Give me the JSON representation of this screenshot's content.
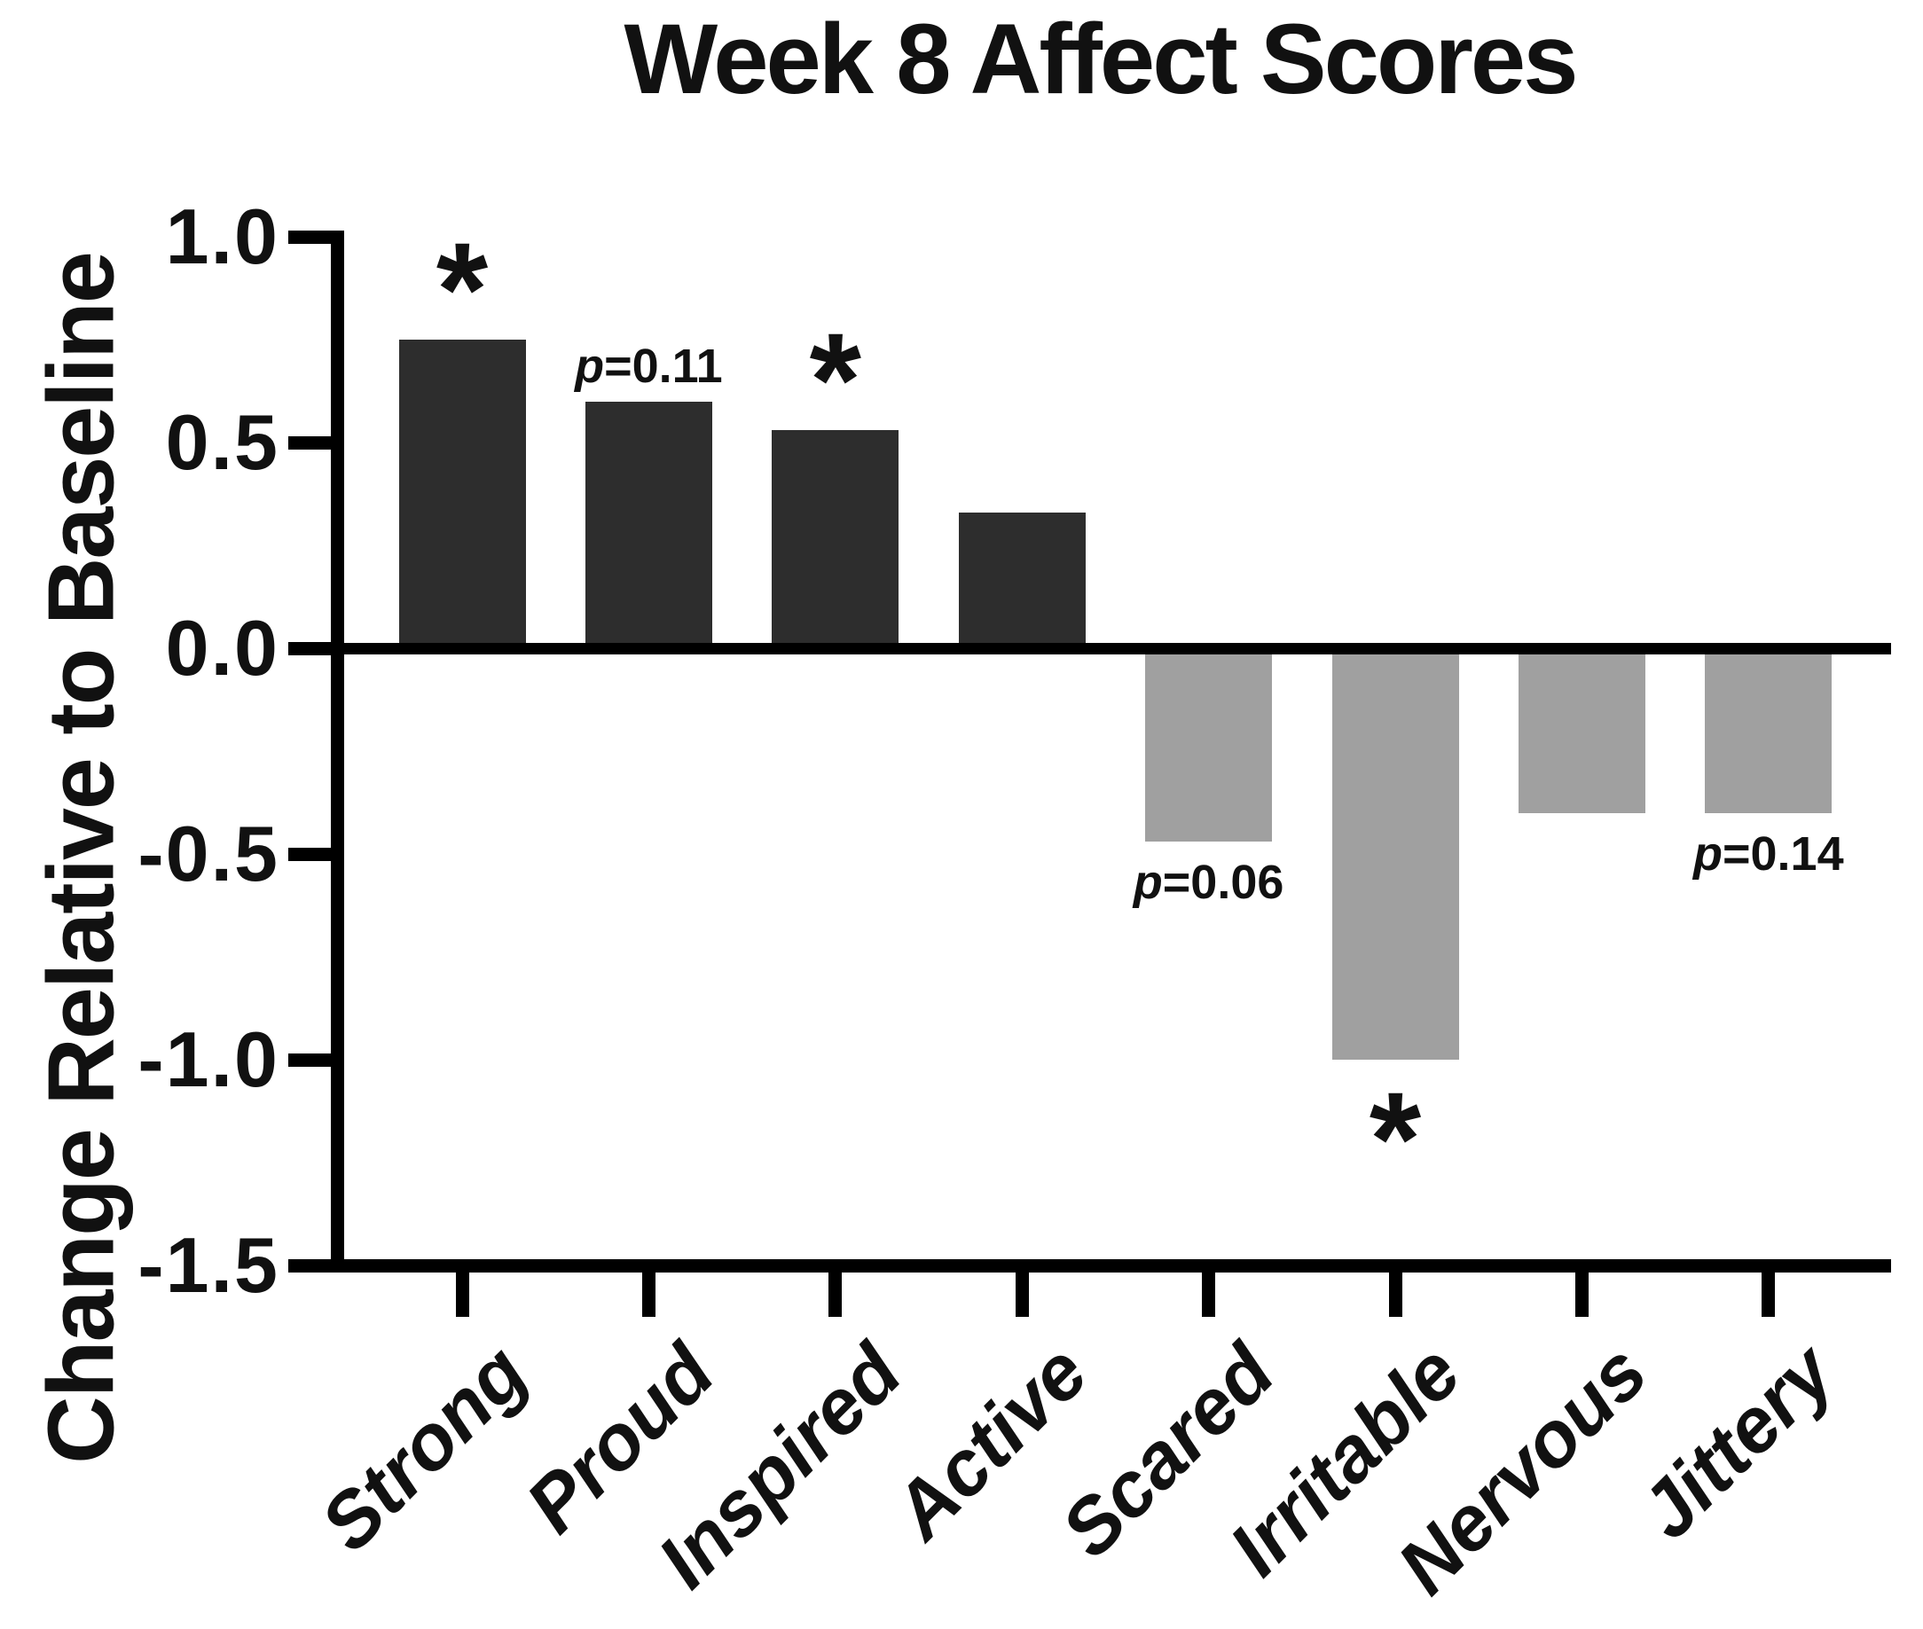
{
  "chart_data": {
    "type": "bar",
    "title": "Week 8 Affect Scores",
    "xlabel": "",
    "ylabel": "Change Relative to Baseline",
    "ylim": [
      -1.5,
      1.0
    ],
    "yticks": [
      1.0,
      0.5,
      0.0,
      -0.5,
      -1.0,
      -1.5
    ],
    "ytick_labels": [
      "1.0",
      "0.5",
      "0.0",
      "-0.5",
      "-1.0",
      "-1.5"
    ],
    "categories": [
      "Strong",
      "Proud",
      "Inspired",
      "Active",
      "Scared",
      "Irritable",
      "Nervous",
      "Jittery"
    ],
    "values": [
      0.75,
      0.6,
      0.53,
      0.33,
      -0.47,
      -1.0,
      -0.4,
      -0.4
    ],
    "series_note": "single series; positive bars dark, negative bars gray",
    "colors": {
      "positive_bar": "#2d2d2d",
      "negative_bar": "#a0a0a0",
      "axis": "#000000",
      "text": "#111111"
    },
    "grid": false,
    "legend": false,
    "annotations": [
      {
        "category": "Strong",
        "text": "*",
        "position": "above"
      },
      {
        "category": "Proud",
        "text": "p=0.11",
        "position": "above"
      },
      {
        "category": "Inspired",
        "text": "*",
        "position": "above"
      },
      {
        "category": "Scared",
        "text": "p=0.06",
        "position": "below"
      },
      {
        "category": "Irritable",
        "text": "*",
        "position": "below"
      },
      {
        "category": "Jittery",
        "text": "p=0.14",
        "position": "below"
      }
    ]
  }
}
